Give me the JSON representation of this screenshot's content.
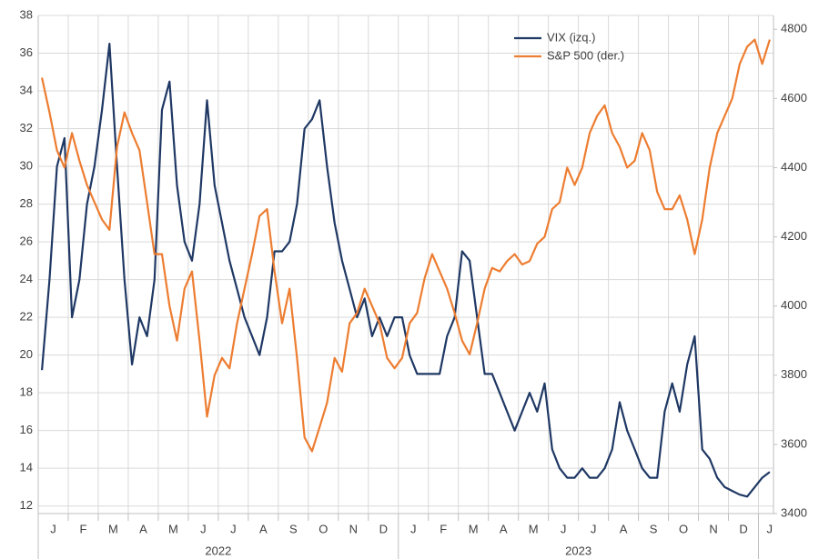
{
  "chart_data": {
    "type": "line",
    "categories": [
      null,
      "J",
      null,
      null,
      null,
      "F",
      null,
      null,
      null,
      "M",
      null,
      null,
      null,
      "A",
      null,
      null,
      null,
      "M",
      null,
      null,
      null,
      "J",
      null,
      null,
      null,
      "J",
      null,
      null,
      null,
      "A",
      null,
      null,
      null,
      "S",
      null,
      null,
      null,
      "O",
      null,
      null,
      null,
      "N",
      null,
      null,
      null,
      "D",
      null,
      null,
      null,
      "J",
      null,
      null,
      null,
      "F",
      null,
      null,
      null,
      "M",
      null,
      null,
      null,
      "A",
      null,
      null,
      null,
      "M",
      null,
      null,
      null,
      "J",
      null,
      null,
      null,
      "J",
      null,
      null,
      null,
      "A",
      null,
      null,
      null,
      "S",
      null,
      null,
      null,
      "O",
      null,
      null,
      null,
      "N",
      null,
      null,
      null,
      "D",
      null,
      null,
      null,
      "J"
    ],
    "years": [
      "2022",
      "2023"
    ],
    "series": [
      {
        "name": "VIX (izq.)",
        "color": "#1f3864",
        "axis": "y",
        "values": [
          19.2,
          24,
          30,
          31.5,
          22,
          24,
          28,
          30,
          33,
          36.5,
          30,
          24,
          19.5,
          22,
          21,
          24,
          33,
          34.5,
          29,
          26,
          25,
          28,
          33.5,
          29,
          27,
          25,
          23.5,
          22,
          21,
          20,
          22,
          25.5,
          25.5,
          26,
          28,
          32,
          32.5,
          33.5,
          30,
          27,
          25,
          23.5,
          22,
          23,
          21,
          22,
          21,
          22,
          22,
          20,
          19,
          19,
          19,
          19,
          21,
          22,
          25.5,
          25,
          22,
          19,
          19,
          18,
          17,
          16,
          17,
          18,
          17,
          18.5,
          15,
          14,
          13.5,
          13.5,
          14,
          13.5,
          13.5,
          14,
          15,
          17.5,
          16,
          15,
          14,
          13.5,
          13.5,
          17,
          18.5,
          17,
          19.5,
          21,
          15,
          14.5,
          13.5,
          13,
          12.8,
          12.6,
          12.5,
          13,
          13.5,
          13.8
        ]
      },
      {
        "name": "S&P 500 (der.)",
        "color": "#ed7d31",
        "axis": "y2",
        "values": [
          4660,
          4560,
          4450,
          4400,
          4500,
          4420,
          4350,
          4300,
          4250,
          4220,
          4460,
          4560,
          4500,
          4450,
          4300,
          4150,
          4150,
          4000,
          3900,
          4050,
          4100,
          3900,
          3680,
          3800,
          3850,
          3820,
          3950,
          4050,
          4150,
          4260,
          4280,
          4100,
          3950,
          4050,
          3850,
          3620,
          3580,
          3650,
          3720,
          3850,
          3810,
          3950,
          3980,
          4050,
          4000,
          3950,
          3850,
          3820,
          3850,
          3950,
          3980,
          4080,
          4150,
          4100,
          4050,
          3980,
          3900,
          3860,
          3950,
          4050,
          4110,
          4100,
          4130,
          4150,
          4120,
          4130,
          4180,
          4200,
          4280,
          4300,
          4400,
          4350,
          4400,
          4500,
          4550,
          4580,
          4500,
          4460,
          4400,
          4420,
          4500,
          4450,
          4330,
          4280,
          4280,
          4320,
          4250,
          4150,
          4250,
          4400,
          4500,
          4550,
          4600,
          4700,
          4750,
          4770,
          4700,
          4770
        ]
      }
    ],
    "ylim": [
      11.6,
      38
    ],
    "yticks": [
      12,
      14,
      16,
      18,
      20,
      22,
      24,
      26,
      28,
      30,
      32,
      34,
      36,
      38
    ],
    "y2lim": [
      3400,
      4840
    ],
    "y2ticks": [
      3400,
      3600,
      3800,
      4000,
      4200,
      4400,
      4600,
      4800
    ],
    "grid": true,
    "legend": "top-right"
  }
}
